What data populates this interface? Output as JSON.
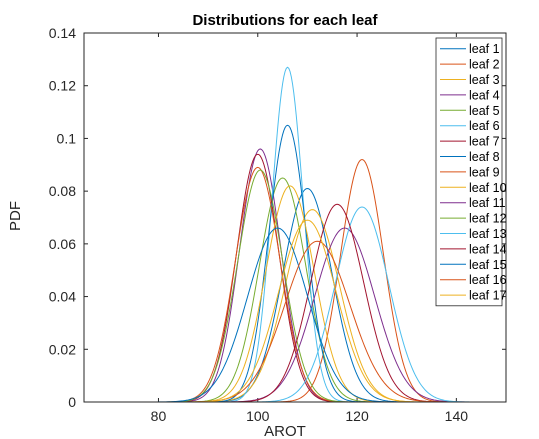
{
  "chart_data": {
    "type": "line",
    "title": "Distributions for each leaf",
    "xlabel": "AROT",
    "ylabel": "PDF",
    "xlim": [
      65,
      150
    ],
    "ylim": [
      0,
      0.14
    ],
    "xticks": [
      80,
      100,
      120,
      140
    ],
    "xtick_labels": [
      "80",
      "100",
      "120",
      "140"
    ],
    "yticks": [
      0,
      0.02,
      0.04,
      0.06,
      0.08,
      0.1,
      0.12,
      0.14
    ],
    "ytick_labels": [
      "0",
      "0.02",
      "0.04",
      "0.06",
      "0.08",
      "0.1",
      "0.12",
      "0.14"
    ],
    "grid": false,
    "legend_position": "top-right",
    "series": [
      {
        "name": "leaf 1",
        "color": "#0072BD",
        "peak_x": 110.0,
        "peak_y": 0.081
      },
      {
        "name": "leaf 2",
        "color": "#D95319",
        "peak_x": 121.0,
        "peak_y": 0.092
      },
      {
        "name": "leaf 3",
        "color": "#EDB120",
        "peak_x": 111.0,
        "peak_y": 0.073
      },
      {
        "name": "leaf 4",
        "color": "#7E2F8E",
        "peak_x": 100.5,
        "peak_y": 0.096
      },
      {
        "name": "leaf 5",
        "color": "#77AC30",
        "peak_x": 105.0,
        "peak_y": 0.085
      },
      {
        "name": "leaf 6",
        "color": "#4DBEEE",
        "peak_x": 106.0,
        "peak_y": 0.127
      },
      {
        "name": "leaf 7",
        "color": "#A2142F",
        "peak_x": 100.0,
        "peak_y": 0.094
      },
      {
        "name": "leaf 8",
        "color": "#0072BD",
        "peak_x": 106.0,
        "peak_y": 0.105
      },
      {
        "name": "leaf 9",
        "color": "#D95319",
        "peak_x": 100.0,
        "peak_y": 0.089
      },
      {
        "name": "leaf 10",
        "color": "#EDB120",
        "peak_x": 106.5,
        "peak_y": 0.082
      },
      {
        "name": "leaf 11",
        "color": "#7E2F8E",
        "peak_x": 117.5,
        "peak_y": 0.066
      },
      {
        "name": "leaf 12",
        "color": "#77AC30",
        "peak_x": 100.5,
        "peak_y": 0.088
      },
      {
        "name": "leaf 13",
        "color": "#4DBEEE",
        "peak_x": 121.0,
        "peak_y": 0.074
      },
      {
        "name": "leaf 14",
        "color": "#A2142F",
        "peak_x": 116.0,
        "peak_y": 0.075
      },
      {
        "name": "leaf 15",
        "color": "#0072BD",
        "peak_x": 104.0,
        "peak_y": 0.066
      },
      {
        "name": "leaf 16",
        "color": "#D95319",
        "peak_x": 112.0,
        "peak_y": 0.061
      },
      {
        "name": "leaf 17",
        "color": "#EDB120",
        "peak_x": 110.0,
        "peak_y": 0.069
      }
    ]
  }
}
